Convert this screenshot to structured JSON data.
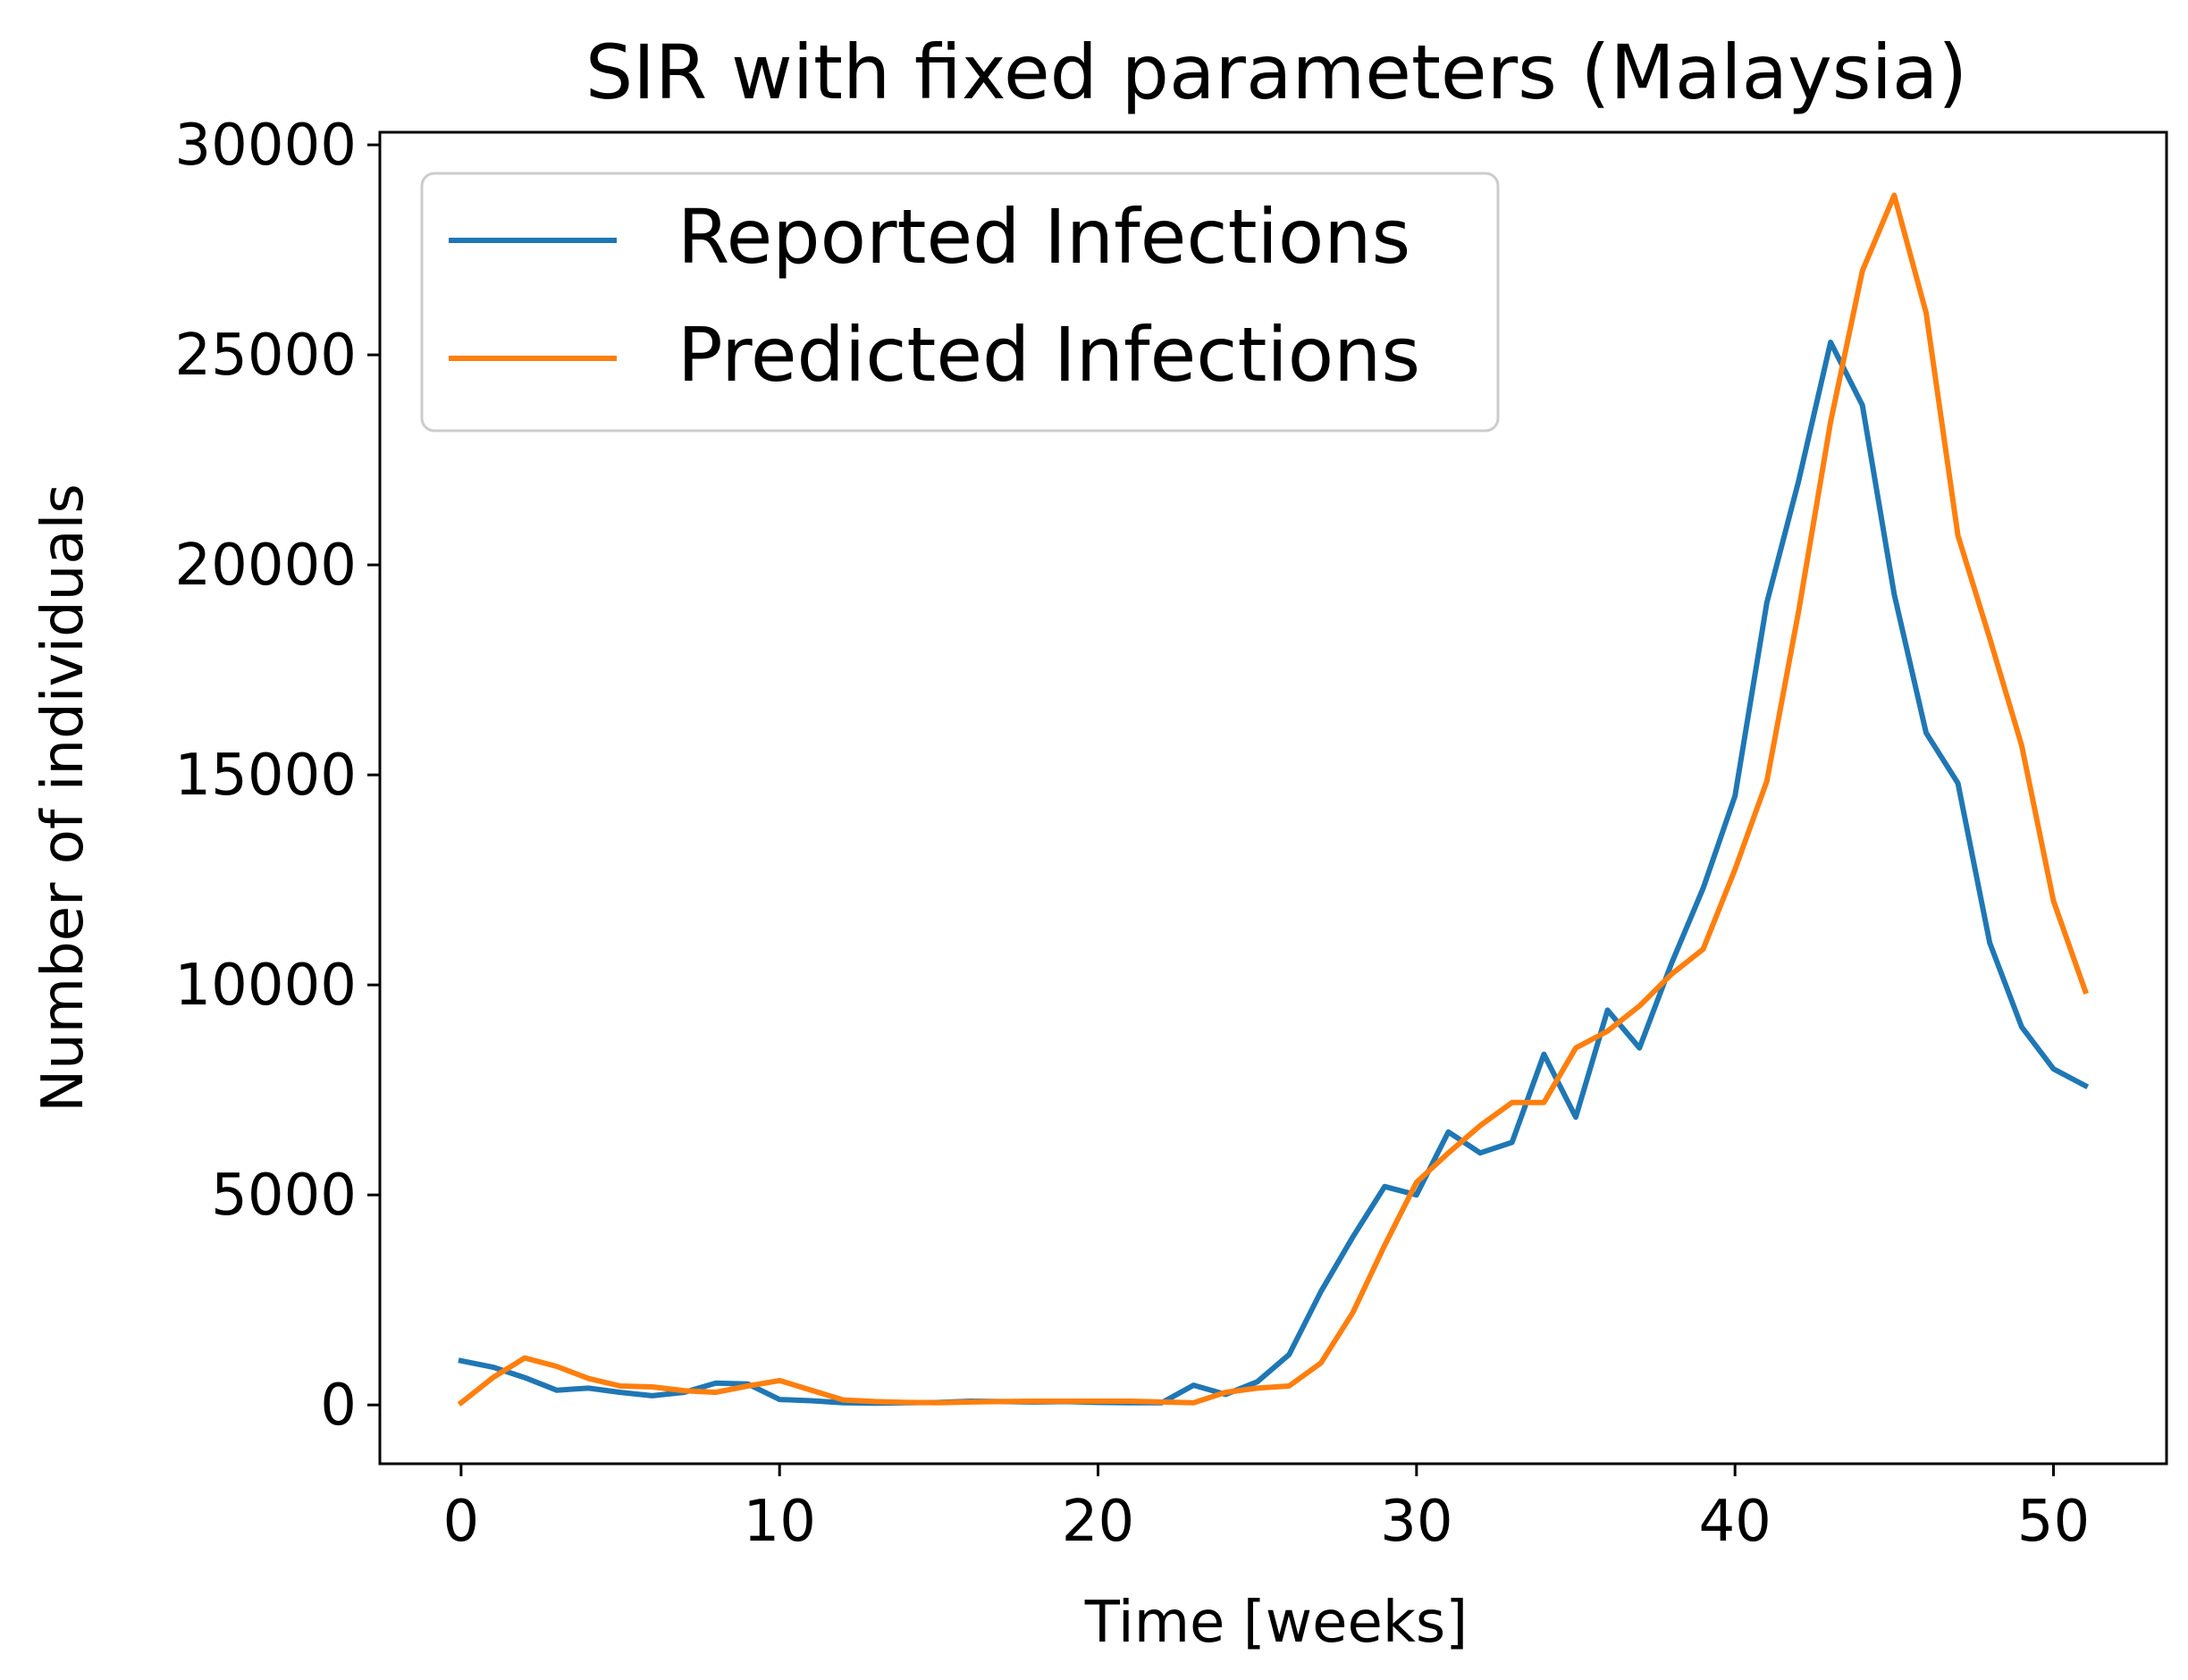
{
  "chart_data": {
    "type": "line",
    "title": "SIR with fixed parameters (Malaysia)",
    "xlabel": "Time [weeks]",
    "ylabel": "Number of individuals",
    "xlim": [
      -2.55,
      53.55
    ],
    "ylim": [
      -1400,
      30300
    ],
    "xticks": [
      0,
      10,
      20,
      30,
      40,
      50
    ],
    "yticks": [
      0,
      5000,
      10000,
      15000,
      20000,
      25000,
      30000
    ],
    "grid": false,
    "legend_position": "upper-left",
    "x": [
      0,
      1,
      2,
      3,
      4,
      5,
      6,
      7,
      8,
      9,
      10,
      11,
      12,
      13,
      14,
      15,
      16,
      17,
      18,
      19,
      20,
      21,
      22,
      23,
      24,
      25,
      26,
      27,
      28,
      29,
      30,
      31,
      32,
      33,
      34,
      35,
      36,
      37,
      38,
      39,
      40,
      41,
      42,
      43,
      44,
      45,
      46,
      47,
      48,
      49,
      50,
      51
    ],
    "series": [
      {
        "name": "Reported Infections",
        "color": "#1f77b4",
        "values": [
          1050,
          900,
          650,
          350,
          400,
          300,
          220,
          300,
          520,
          500,
          130,
          100,
          50,
          40,
          50,
          60,
          90,
          80,
          70,
          80,
          60,
          50,
          50,
          470,
          250,
          550,
          1200,
          2700,
          4000,
          5200,
          5000,
          6500,
          6000,
          6250,
          8350,
          6850,
          9400,
          8500,
          10500,
          12300,
          14500,
          19100,
          22000,
          25300,
          23800,
          19300,
          16000,
          14800,
          11000,
          9000,
          8000,
          7600
        ]
      },
      {
        "name": "Predicted Infections",
        "color": "#ff7f0e",
        "values": [
          50,
          650,
          1120,
          920,
          630,
          450,
          430,
          340,
          300,
          450,
          580,
          350,
          120,
          80,
          60,
          50,
          70,
          80,
          90,
          90,
          90,
          90,
          70,
          50,
          300,
          400,
          450,
          1000,
          2200,
          3800,
          5300,
          6000,
          6650,
          7200,
          7200,
          8500,
          8900,
          9500,
          10250,
          10850,
          12750,
          14850,
          18900,
          23400,
          27000,
          28800,
          26000,
          20700,
          18250,
          15700,
          12000,
          9850
        ]
      }
    ]
  }
}
